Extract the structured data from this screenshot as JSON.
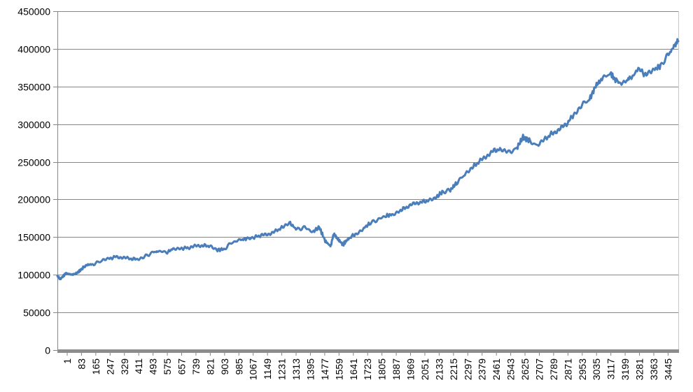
{
  "chart_data": {
    "type": "line",
    "title": "",
    "xlabel": "",
    "ylabel": "",
    "ylim": [
      0,
      450000
    ],
    "y_ticks": [
      0,
      50000,
      100000,
      150000,
      200000,
      250000,
      300000,
      350000,
      400000,
      450000
    ],
    "xlim": [
      1,
      3500
    ],
    "x_tick_labels": [
      "1",
      "83",
      "165",
      "247",
      "329",
      "411",
      "493",
      "575",
      "657",
      "739",
      "821",
      "903",
      "985",
      "1067",
      "1149",
      "1231",
      "1313",
      "1395",
      "1477",
      "1559",
      "1641",
      "1723",
      "1805",
      "1887",
      "1969",
      "2051",
      "2133",
      "2215",
      "2297",
      "2379",
      "2461",
      "2543",
      "2625",
      "2707",
      "2789",
      "2871",
      "2953",
      "3035",
      "3117",
      "3199",
      "3281",
      "3363",
      "3445"
    ],
    "grid": "horizontal",
    "legend": "none",
    "series": [
      {
        "color": "#4a7ebb",
        "x": [
          1,
          20,
          50,
          83,
          110,
          140,
          165,
          200,
          247,
          290,
          329,
          370,
          411,
          450,
          493,
          540,
          575,
          620,
          657,
          700,
          739,
          780,
          821,
          860,
          903,
          940,
          985,
          1030,
          1067,
          1110,
          1149,
          1190,
          1231,
          1270,
          1313,
          1350,
          1395,
          1440,
          1477,
          1510,
          1540,
          1559,
          1580,
          1610,
          1641,
          1680,
          1723,
          1760,
          1805,
          1850,
          1887,
          1930,
          1969,
          2010,
          2051,
          2090,
          2133,
          2170,
          2215,
          2250,
          2297,
          2340,
          2379,
          2420,
          2461,
          2500,
          2543,
          2590,
          2625,
          2660,
          2707,
          2750,
          2789,
          2830,
          2871,
          2910,
          2953,
          3000,
          3035,
          3070,
          3117,
          3150,
          3199,
          3230,
          3281,
          3320,
          3363,
          3400,
          3445,
          3480,
          3500
        ],
        "y": [
          97000,
          95000,
          102000,
          100000,
          102000,
          108000,
          113000,
          114000,
          118000,
          121000,
          124000,
          123000,
          121000,
          121000,
          124000,
          130000,
          131000,
          130000,
          135000,
          135000,
          136000,
          138000,
          139000,
          138000,
          133000,
          134000,
          143000,
          146000,
          148000,
          150000,
          152000,
          154000,
          158000,
          163000,
          168000,
          160000,
          163000,
          157000,
          163000,
          145000,
          138000,
          154000,
          148000,
          140000,
          148000,
          154000,
          161000,
          168000,
          173000,
          178000,
          180000,
          185000,
          190000,
          194000,
          197000,
          198000,
          202000,
          210000,
          212000,
          222000,
          233000,
          243000,
          250000,
          258000,
          265000,
          266000,
          262000,
          268000,
          283000,
          278000,
          271000,
          280000,
          288000,
          293000,
          300000,
          313000,
          325000,
          333000,
          351000,
          360000,
          368000,
          357000,
          355000,
          363000,
          372000,
          365000,
          372000,
          378000,
          392000,
          405000,
          410000
        ]
      }
    ]
  }
}
